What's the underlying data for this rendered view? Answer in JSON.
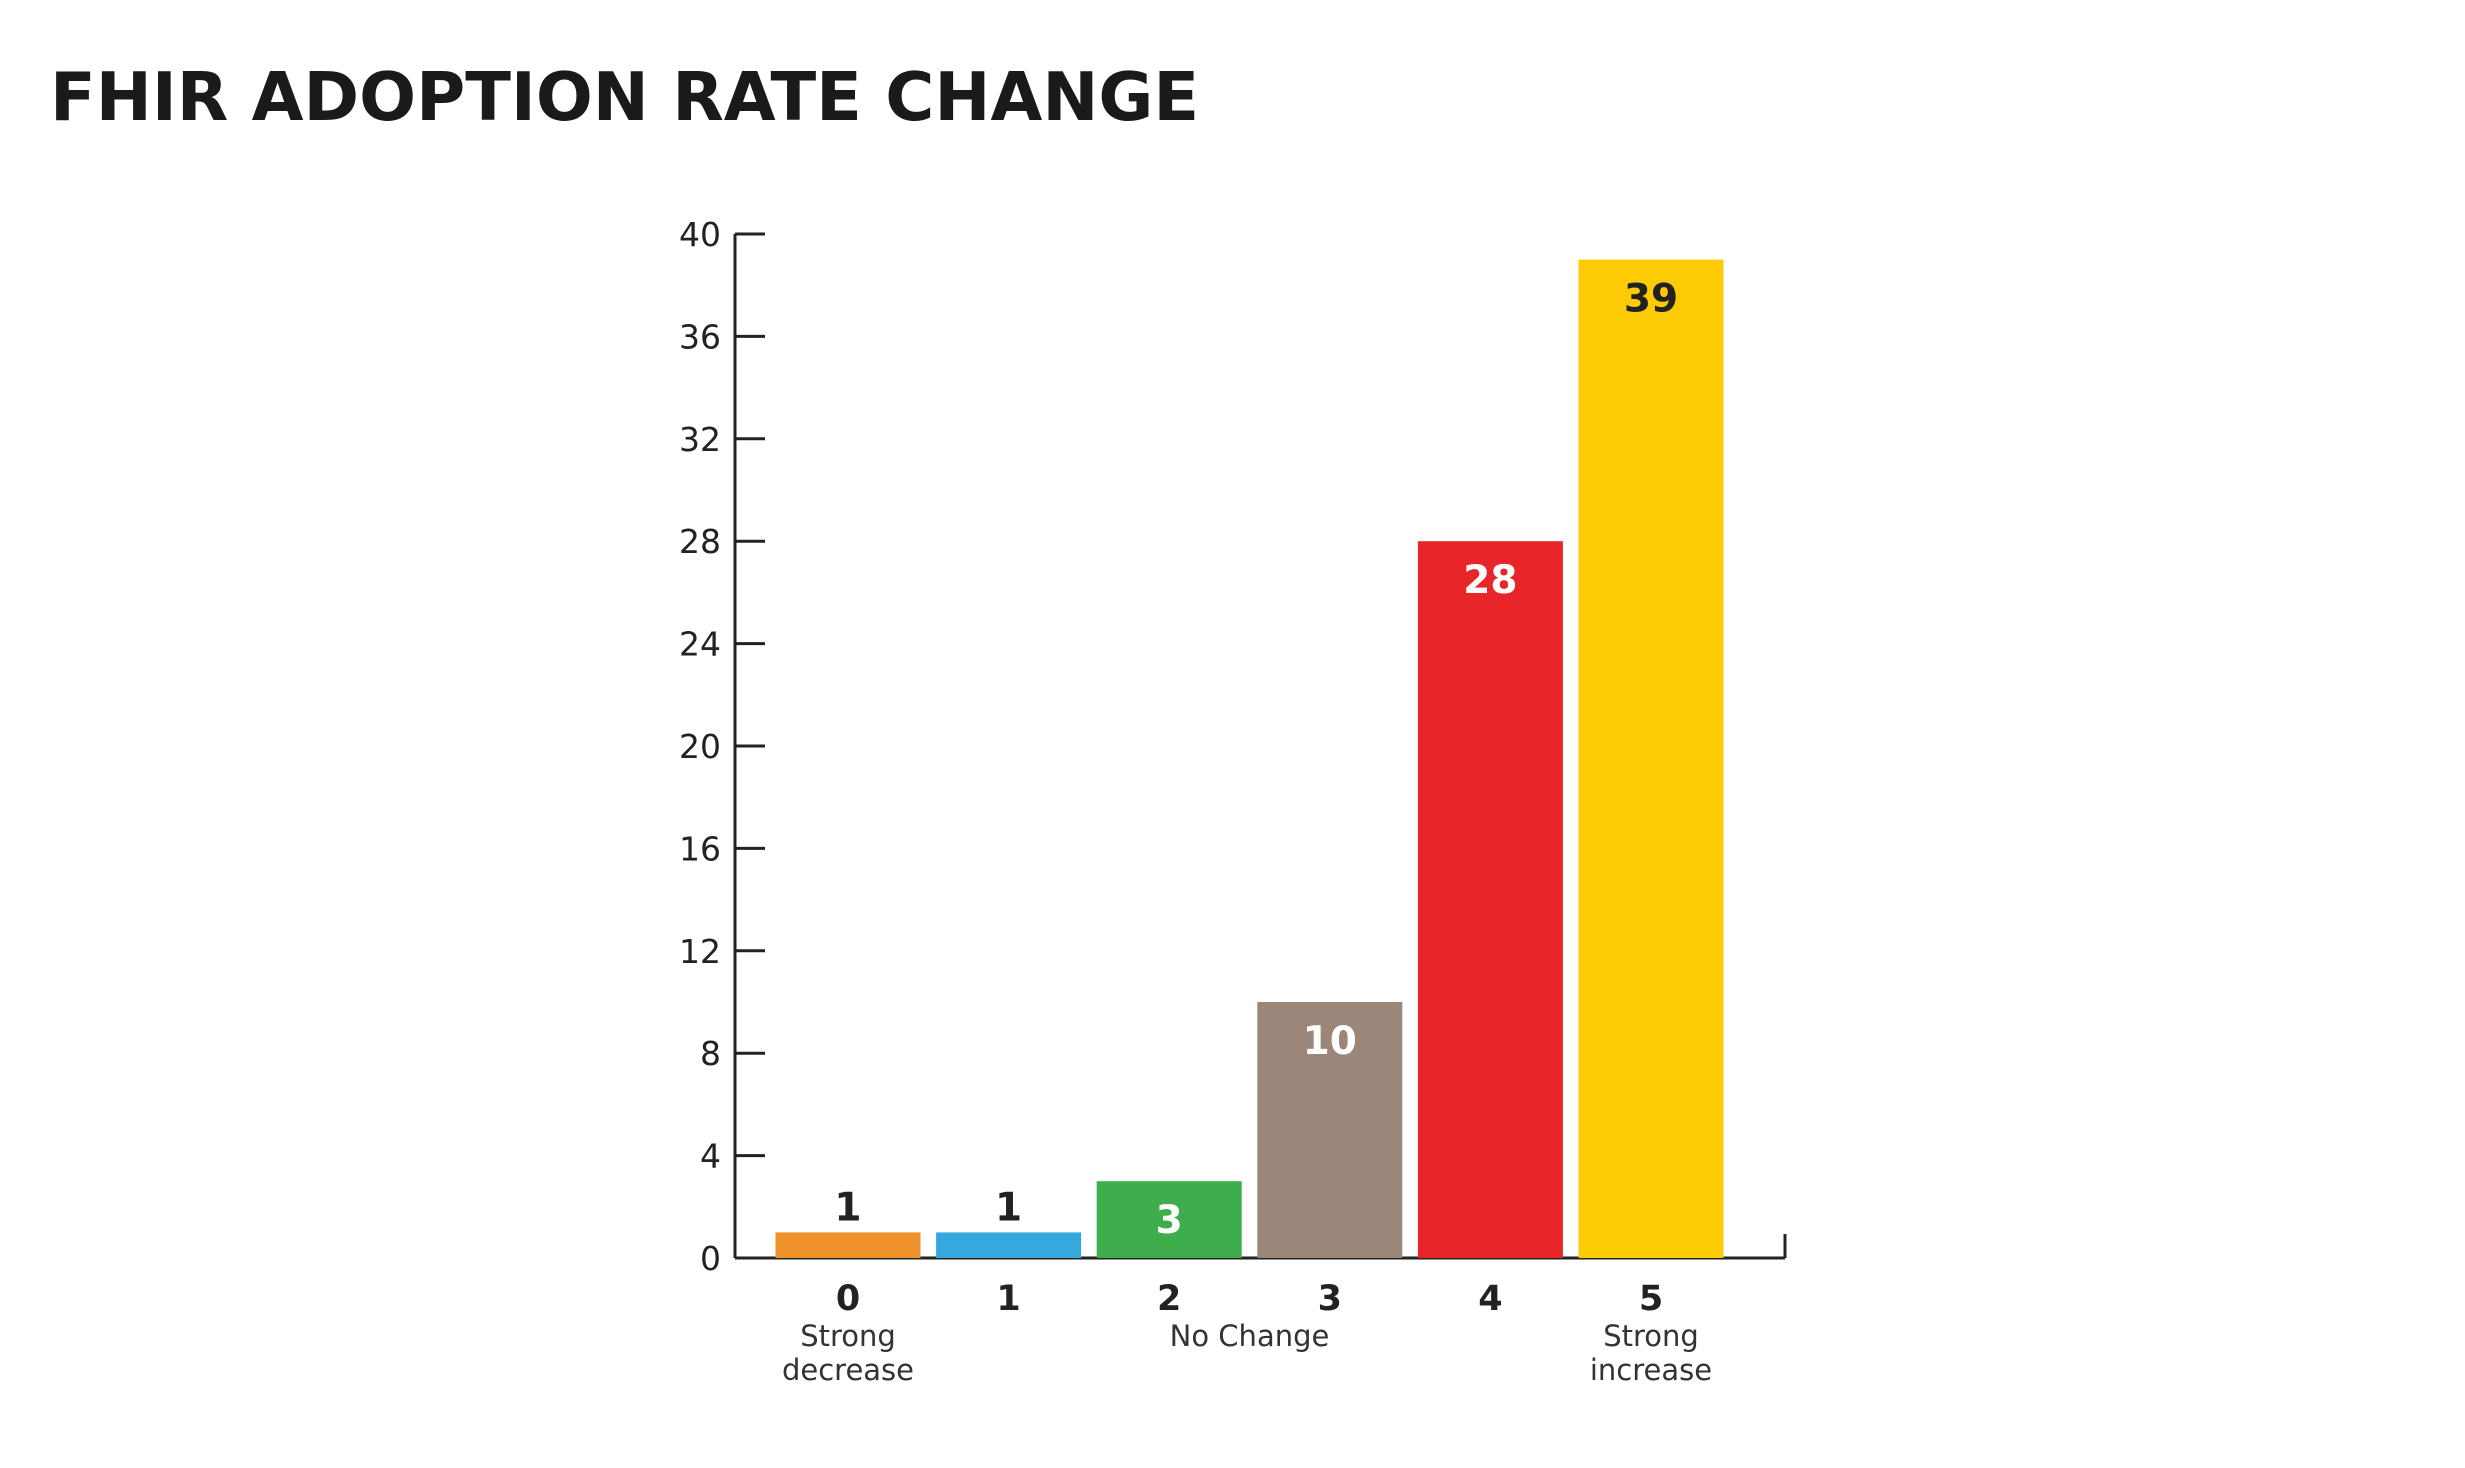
{
  "chart_data": {
    "type": "bar",
    "title": "FHIR ADOPTION RATE CHANGE",
    "xlabel": "",
    "ylabel": "",
    "categories": [
      "0",
      "1",
      "2",
      "3",
      "4",
      "5"
    ],
    "values": [
      1,
      1,
      3,
      10,
      28,
      39
    ],
    "data_labels": [
      "1",
      "1",
      "3",
      "10",
      "28",
      "39"
    ],
    "bar_colors": [
      "#F0922B",
      "#35A9DF",
      "#3DAE4B",
      "#9C8579",
      "#E8262A",
      "#FCCB05"
    ],
    "data_label_colors": [
      "#222222",
      "#222222",
      "#ffffff",
      "#ffffff",
      "#ffffff",
      "#222222"
    ],
    "ylim": [
      0,
      40
    ],
    "yticks": [
      0,
      4,
      8,
      12,
      16,
      20,
      24,
      28,
      32,
      36,
      40
    ],
    "annotations": [
      {
        "category": "0",
        "lines": [
          "Strong",
          "decrease"
        ]
      },
      {
        "category": "2-3",
        "lines": [
          "No Change"
        ]
      },
      {
        "category": "5",
        "lines": [
          "Strong",
          "increase"
        ]
      }
    ],
    "grid": false,
    "legend": "none"
  }
}
